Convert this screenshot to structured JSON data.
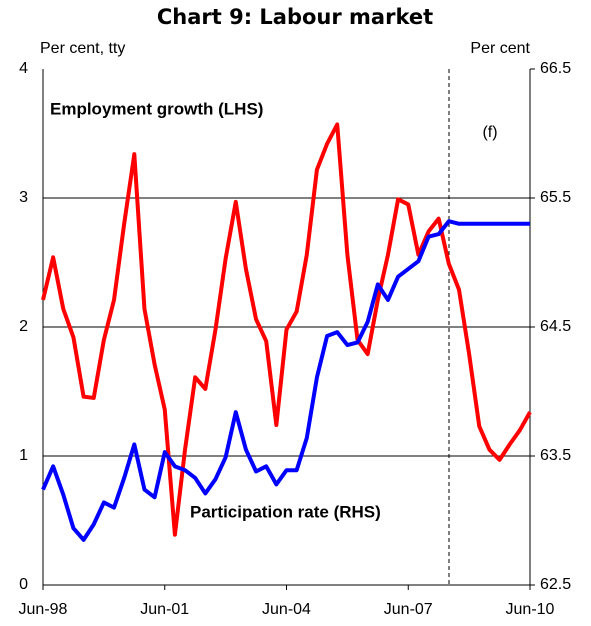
{
  "chart_data": {
    "type": "line",
    "title": "Chart 9: Labour market",
    "y_label": "Per cent, tty",
    "y2_label": "Per cent",
    "annotation": "(f)",
    "categories": [
      "Jun-98",
      null,
      null,
      null,
      null,
      null,
      null,
      null,
      null,
      null,
      null,
      null,
      "Jun-01",
      null,
      null,
      null,
      null,
      null,
      null,
      null,
      null,
      null,
      null,
      null,
      "Jun-04",
      null,
      null,
      null,
      null,
      null,
      null,
      null,
      null,
      null,
      null,
      null,
      "Jun-07",
      null,
      null,
      null,
      null,
      null,
      null,
      null,
      null,
      null,
      null,
      null,
      "Jun-10"
    ],
    "ylim": [
      0,
      4
    ],
    "yticks": [
      0,
      1,
      2,
      3,
      4
    ],
    "y2lim": [
      62.5,
      66.5
    ],
    "y2ticks": [
      62.5,
      63.5,
      64.5,
      65.5,
      66.5
    ],
    "grid": true,
    "series": [
      {
        "name": "Employment growth (LHS)",
        "color": "#ff0000",
        "values": [
          2.21,
          2.54,
          2.14,
          1.92,
          1.46,
          1.45,
          1.9,
          2.21,
          2.8,
          3.34,
          2.14,
          1.71,
          1.36,
          0.39,
          1.05,
          1.61,
          1.52,
          1.98,
          2.53,
          2.97,
          2.45,
          2.06,
          1.89,
          1.24,
          1.98,
          2.12,
          2.56,
          3.22,
          3.42,
          3.57,
          2.56,
          1.9,
          1.79,
          2.21,
          2.56,
          2.99,
          2.95,
          2.56,
          2.74,
          2.84,
          2.49,
          2.29,
          1.79,
          1.23,
          1.05,
          0.97,
          1.09,
          1.2,
          1.34
        ]
      },
      {
        "name": "Participation rate (RHS)",
        "color": "#0000ff",
        "axis": "y2",
        "values": [
          63.24,
          63.42,
          63.2,
          62.94,
          62.85,
          62.97,
          63.14,
          63.1,
          63.33,
          63.59,
          63.24,
          63.18,
          63.53,
          63.42,
          63.39,
          63.33,
          63.21,
          63.32,
          63.49,
          63.84,
          63.55,
          63.38,
          63.42,
          63.28,
          63.39,
          63.39,
          63.64,
          64.11,
          64.43,
          64.46,
          64.36,
          64.38,
          64.54,
          64.83,
          64.71,
          64.89,
          64.95,
          65.01,
          65.2,
          65.22,
          65.32,
          65.3,
          65.3,
          65.3,
          65.3,
          65.3,
          65.3,
          65.3,
          65.3
        ]
      }
    ]
  }
}
